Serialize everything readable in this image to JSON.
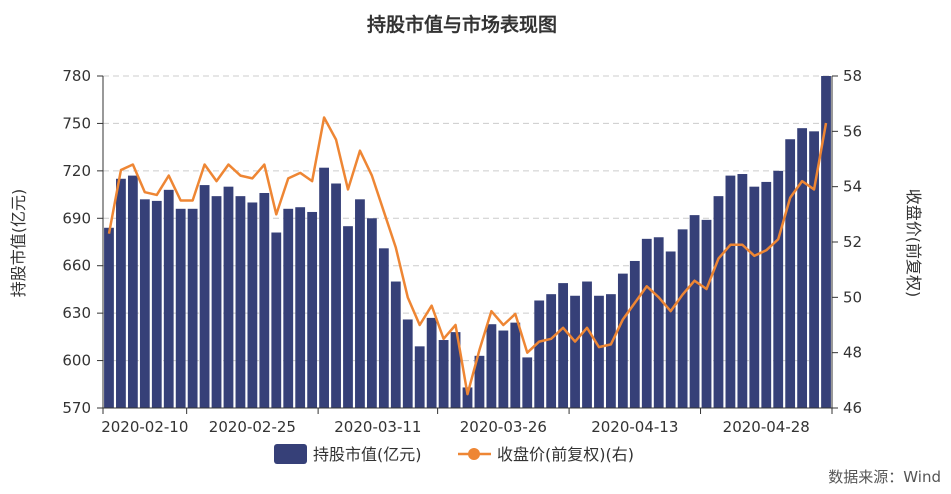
{
  "chart_data": {
    "type": "bar",
    "title": "持股市值与市场表现图",
    "x_tick_labels": [
      "2020-02-10",
      "2020-02-25",
      "2020-03-11",
      "2020-03-26",
      "2020-04-13",
      "2020-04-28"
    ],
    "ylabel_left": "持股市值(亿元)",
    "ylabel_right": "收盘价(前复权)",
    "ylim_left": [
      570,
      780
    ],
    "ylim_right": [
      46,
      58
    ],
    "yticks_left": [
      570,
      600,
      630,
      660,
      690,
      720,
      750,
      780
    ],
    "yticks_right": [
      46,
      48,
      50,
      52,
      54,
      56,
      58
    ],
    "grid": true,
    "legend_placement": "bottom-center",
    "source": "数据来源：Wind",
    "series": [
      {
        "name": "持股市值(亿元)",
        "type": "bar",
        "axis": "left",
        "color": "#364078",
        "values": [
          684,
          715,
          717,
          702,
          701,
          708,
          696,
          696,
          711,
          704,
          710,
          704,
          700,
          706,
          681,
          696,
          697,
          694,
          722,
          712,
          685,
          702,
          690,
          671,
          650,
          626,
          609,
          627,
          613,
          618,
          583,
          603,
          623,
          619,
          624,
          602,
          638,
          642,
          649,
          641,
          650,
          641,
          642,
          655,
          663,
          677,
          678,
          669,
          683,
          692,
          689,
          704,
          717,
          718,
          710,
          713,
          720,
          740,
          747,
          745,
          780
        ]
      },
      {
        "name": "收盘价(前复权)(右)",
        "type": "line",
        "axis": "right",
        "color": "#EE8634",
        "values": [
          52.3,
          54.6,
          54.8,
          53.8,
          53.7,
          54.4,
          53.5,
          53.5,
          54.8,
          54.2,
          54.8,
          54.4,
          54.3,
          54.8,
          53.0,
          54.3,
          54.5,
          54.2,
          56.5,
          55.7,
          53.9,
          55.3,
          54.4,
          53.1,
          51.8,
          50.0,
          49.0,
          49.7,
          48.5,
          49.0,
          46.5,
          48.1,
          49.5,
          49.0,
          49.4,
          48.0,
          48.4,
          48.5,
          48.9,
          48.4,
          48.9,
          48.2,
          48.3,
          49.2,
          49.8,
          50.4,
          50.0,
          49.5,
          50.1,
          50.6,
          50.3,
          51.4,
          51.9,
          51.9,
          51.5,
          51.7,
          52.1,
          53.6,
          54.2,
          53.9,
          56.3
        ]
      }
    ]
  }
}
